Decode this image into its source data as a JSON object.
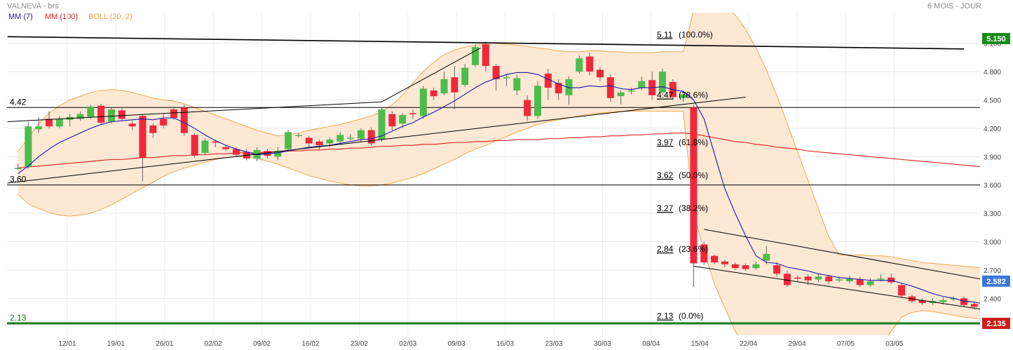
{
  "header": {
    "title": "VALNEVA - brs",
    "period": "6 MOIS - JOUR"
  },
  "legend": [
    {
      "label": "MM (7)",
      "color": "#1a1aa8"
    },
    {
      "label": "MM (100)",
      "color": "#e02020"
    },
    {
      "label": "BOLL (20, 2)",
      "color": "#f0a040"
    }
  ],
  "colors": {
    "up": "#4cbc4c",
    "down": "#f0283c",
    "boll_fill": "#fde8d4",
    "boll_line": "#f0a040",
    "mm7": "#1a1aa8",
    "mm100": "#e02020",
    "support": "#1a7a1a",
    "last_badge": "#3c78d8"
  },
  "chart_data": {
    "type": "candlestick",
    "yaxis_ticks": [
      "5.100",
      "4.800",
      "4.500",
      "4.200",
      "3.900",
      "3.600",
      "3.300",
      "3.000",
      "2.700",
      "2.400"
    ],
    "ylim": [
      2.05,
      5.45
    ],
    "xaxis_ticks": [
      "12/01",
      "19/01",
      "26/01",
      "02/02",
      "09/02",
      "16/02",
      "23/02",
      "02/03",
      "09/03",
      "16/03",
      "23/03",
      "30/03",
      "08/04",
      "15/04",
      "22/04",
      "29/04",
      "07/05",
      "03/05"
    ],
    "candles": [
      [
        3.78,
        3.78,
        3.82,
        3.76
      ],
      [
        3.79,
        4.22,
        4.27,
        3.77
      ],
      [
        4.19,
        4.22,
        4.32,
        4.15
      ],
      [
        4.3,
        4.22,
        4.38,
        4.2
      ],
      [
        4.22,
        4.3,
        4.33,
        4.2
      ],
      [
        4.29,
        4.32,
        4.35,
        4.22
      ],
      [
        4.3,
        4.35,
        4.38,
        4.28
      ],
      [
        4.32,
        4.43,
        4.45,
        4.3
      ],
      [
        4.44,
        4.26,
        4.46,
        4.24
      ],
      [
        4.27,
        4.4,
        4.42,
        4.25
      ],
      [
        4.39,
        4.3,
        4.41,
        4.28
      ],
      [
        4.25,
        4.22,
        4.28,
        4.18
      ],
      [
        4.33,
        3.89,
        4.35,
        3.64
      ],
      [
        4.23,
        4.15,
        4.25,
        4.1
      ],
      [
        4.3,
        4.23,
        4.35,
        4.2
      ],
      [
        4.4,
        4.31,
        4.43,
        4.29
      ],
      [
        4.42,
        4.15,
        4.45,
        4.12
      ],
      [
        4.13,
        3.91,
        4.15,
        3.89
      ],
      [
        3.94,
        4.07,
        4.09,
        3.92
      ],
      [
        4.06,
        4.05,
        4.08,
        4.0
      ],
      [
        4.0,
        3.98,
        4.02,
        3.96
      ],
      [
        3.98,
        3.92,
        4.0,
        3.9
      ],
      [
        3.95,
        3.88,
        3.98,
        3.86
      ],
      [
        3.88,
        3.97,
        4.0,
        3.85
      ],
      [
        3.96,
        3.91,
        3.98,
        3.88
      ],
      [
        3.9,
        3.96,
        4.0,
        3.86
      ],
      [
        3.98,
        4.16,
        4.18,
        3.96
      ],
      [
        4.12,
        4.13,
        4.15,
        4.1
      ],
      [
        4.1,
        4.04,
        4.12,
        4.0
      ],
      [
        4.06,
        4.02,
        4.08,
        3.97
      ],
      [
        4.04,
        4.08,
        4.1,
        4.0
      ],
      [
        4.06,
        4.13,
        4.16,
        4.04
      ],
      [
        4.1,
        4.1,
        4.14,
        4.07
      ],
      [
        4.09,
        4.18,
        4.2,
        4.06
      ],
      [
        4.18,
        4.04,
        4.21,
        4.02
      ],
      [
        4.08,
        4.4,
        4.42,
        4.06
      ],
      [
        4.35,
        4.22,
        4.38,
        4.18
      ],
      [
        4.25,
        4.34,
        4.36,
        4.2
      ],
      [
        4.36,
        4.35,
        4.4,
        4.3
      ],
      [
        4.33,
        4.62,
        4.65,
        4.3
      ],
      [
        4.6,
        4.54,
        4.63,
        4.5
      ],
      [
        4.57,
        4.72,
        4.8,
        4.55
      ],
      [
        4.74,
        4.58,
        4.86,
        4.4
      ],
      [
        4.66,
        4.84,
        4.88,
        4.64
      ],
      [
        4.87,
        5.06,
        5.09,
        4.85
      ],
      [
        5.09,
        4.86,
        5.12,
        4.8
      ],
      [
        4.86,
        4.72,
        4.88,
        4.6
      ],
      [
        4.74,
        4.74,
        4.78,
        4.65
      ],
      [
        4.6,
        4.73,
        4.77,
        4.55
      ],
      [
        4.5,
        4.33,
        4.55,
        4.28
      ],
      [
        4.33,
        4.65,
        4.7,
        4.3
      ],
      [
        4.78,
        4.63,
        4.83,
        4.5
      ],
      [
        4.68,
        4.57,
        4.72,
        4.5
      ],
      [
        4.55,
        4.72,
        4.75,
        4.45
      ],
      [
        4.8,
        4.94,
        4.97,
        4.78
      ],
      [
        4.96,
        4.8,
        5.0,
        4.76
      ],
      [
        4.82,
        4.74,
        4.85,
        4.7
      ],
      [
        4.74,
        4.52,
        4.77,
        4.48
      ],
      [
        4.54,
        4.58,
        4.6,
        4.45
      ],
      [
        4.59,
        4.6,
        4.63,
        4.56
      ],
      [
        4.63,
        4.7,
        4.75,
        4.6
      ],
      [
        4.71,
        4.55,
        4.8,
        4.5
      ],
      [
        4.58,
        4.8,
        4.83,
        4.55
      ],
      [
        4.69,
        4.53,
        4.72,
        4.5
      ],
      [
        4.52,
        4.56,
        4.6,
        4.48
      ],
      [
        4.42,
        2.77,
        4.45,
        2.52
      ],
      [
        2.97,
        2.78,
        3.0,
        2.75
      ],
      [
        2.85,
        2.78,
        2.86,
        2.76
      ],
      [
        2.79,
        2.76,
        2.81,
        2.73
      ],
      [
        2.76,
        2.72,
        2.78,
        2.7
      ],
      [
        2.75,
        2.71,
        2.77,
        2.69
      ],
      [
        2.72,
        2.76,
        2.79,
        2.7
      ],
      [
        2.8,
        2.87,
        2.95,
        2.76
      ],
      [
        2.75,
        2.66,
        2.78,
        2.63
      ],
      [
        2.66,
        2.54,
        2.69,
        2.52
      ],
      [
        2.62,
        2.61,
        2.64,
        2.58
      ],
      [
        2.63,
        2.59,
        2.66,
        2.54
      ],
      [
        2.6,
        2.63,
        2.66,
        2.57
      ],
      [
        2.63,
        2.58,
        2.65,
        2.55
      ],
      [
        2.6,
        2.6,
        2.63,
        2.57
      ],
      [
        2.58,
        2.61,
        2.64,
        2.56
      ],
      [
        2.6,
        2.54,
        2.63,
        2.52
      ],
      [
        2.54,
        2.58,
        2.61,
        2.52
      ],
      [
        2.6,
        2.61,
        2.65,
        2.58
      ],
      [
        2.62,
        2.57,
        2.66,
        2.55
      ],
      [
        2.54,
        2.43,
        2.56,
        2.4
      ],
      [
        2.42,
        2.37,
        2.44,
        2.35
      ],
      [
        2.38,
        2.35,
        2.4,
        2.33
      ],
      [
        2.35,
        2.37,
        2.4,
        2.33
      ],
      [
        2.36,
        2.38,
        2.41,
        2.34
      ],
      [
        2.39,
        2.4,
        2.42,
        2.37
      ],
      [
        2.4,
        2.33,
        2.42,
        2.31
      ],
      [
        2.34,
        2.31,
        2.36,
        2.28
      ],
      [
        2.32,
        2.24,
        2.34,
        2.15
      ],
      [
        2.22,
        2.3,
        2.33,
        2.19
      ],
      [
        2.3,
        2.32,
        2.35,
        2.28
      ],
      [
        2.31,
        2.44,
        2.47,
        2.29
      ],
      [
        2.44,
        2.41,
        2.45,
        2.38
      ],
      [
        2.4,
        2.58,
        2.6,
        2.38
      ]
    ],
    "mm7": [
      3.72,
      3.8,
      3.9,
      3.98,
      4.05,
      4.1,
      4.15,
      4.2,
      4.24,
      4.27,
      4.28,
      4.29,
      4.3,
      4.29,
      4.31,
      4.31,
      4.26,
      4.2,
      4.13,
      4.07,
      4.02,
      3.98,
      3.95,
      3.92,
      3.93,
      3.94,
      3.96,
      3.98,
      4.0,
      4.01,
      4.02,
      4.04,
      4.06,
      4.08,
      4.09,
      4.12,
      4.17,
      4.22,
      4.26,
      4.32,
      4.37,
      4.43,
      4.49,
      4.56,
      4.63,
      4.69,
      4.73,
      4.77,
      4.79,
      4.79,
      4.77,
      4.72,
      4.67,
      4.63,
      4.63,
      4.65,
      4.64,
      4.65,
      4.62,
      4.61,
      4.63,
      4.63,
      4.64,
      4.61,
      4.59,
      4.5,
      4.3,
      3.93,
      3.56,
      3.3,
      3.06,
      2.85,
      2.78,
      2.77,
      2.73,
      2.71,
      2.69,
      2.66,
      2.64,
      2.62,
      2.61,
      2.6,
      2.59,
      2.59,
      2.59,
      2.56,
      2.53,
      2.49,
      2.45,
      2.42,
      2.4,
      2.37,
      2.36,
      2.34,
      2.33,
      2.33,
      2.33,
      2.34,
      2.36
    ],
    "mm100": [
      3.78,
      3.79,
      3.8,
      3.81,
      3.82,
      3.83,
      3.84,
      3.85,
      3.86,
      3.87,
      3.87,
      3.88,
      3.89,
      3.89,
      3.9,
      3.91,
      3.91,
      3.92,
      3.92,
      3.93,
      3.93,
      3.94,
      3.94,
      3.94,
      3.95,
      3.95,
      3.96,
      3.96,
      3.97,
      3.97,
      3.98,
      3.98,
      3.99,
      3.99,
      4.0,
      4.01,
      4.01,
      4.02,
      4.02,
      4.03,
      4.03,
      4.04,
      4.05,
      4.05,
      4.06,
      4.06,
      4.07,
      4.07,
      4.08,
      4.08,
      4.08,
      4.09,
      4.09,
      4.1,
      4.1,
      4.11,
      4.11,
      4.12,
      4.12,
      4.13,
      4.13,
      4.14,
      4.14,
      4.15,
      4.15,
      4.14,
      4.12,
      4.1,
      4.08,
      4.06,
      4.05,
      4.03,
      4.02,
      4.0,
      3.99,
      3.98,
      3.96,
      3.95,
      3.94,
      3.93,
      3.92,
      3.91,
      3.9,
      3.89,
      3.88,
      3.87,
      3.86,
      3.85,
      3.84,
      3.83,
      3.82,
      3.81,
      3.8,
      3.79,
      3.78,
      3.77,
      3.76,
      3.75,
      3.73
    ],
    "boll_upper": [
      3.95,
      4.1,
      4.25,
      4.36,
      4.44,
      4.5,
      4.54,
      4.58,
      4.6,
      4.61,
      4.6,
      4.58,
      4.55,
      4.52,
      4.5,
      4.49,
      4.46,
      4.42,
      4.38,
      4.34,
      4.3,
      4.26,
      4.22,
      4.18,
      4.15,
      4.12,
      4.13,
      4.15,
      4.18,
      4.2,
      4.22,
      4.24,
      4.27,
      4.3,
      4.33,
      4.38,
      4.45,
      4.55,
      4.68,
      4.8,
      4.9,
      4.98,
      5.03,
      5.06,
      5.08,
      5.1,
      5.1,
      5.09,
      5.08,
      5.07,
      5.05,
      5.04,
      5.02,
      5.01,
      5.01,
      5.02,
      5.02,
      5.01,
      5.01,
      5.0,
      5.0,
      5.0,
      5.01,
      5.01,
      5.01,
      5.45,
      5.52,
      5.52,
      5.49,
      5.4,
      5.25,
      5.05,
      4.82,
      4.55,
      4.25,
      3.95,
      3.65,
      3.35,
      3.05,
      2.86,
      2.86,
      2.86,
      2.85,
      2.85,
      2.84,
      2.82,
      2.8,
      2.78,
      2.77,
      2.76,
      2.75,
      2.74,
      2.73,
      2.72,
      2.71,
      2.71,
      2.72,
      2.71,
      2.7
    ],
    "boll_lower": [
      3.5,
      3.4,
      3.35,
      3.31,
      3.28,
      3.27,
      3.28,
      3.3,
      3.34,
      3.39,
      3.45,
      3.51,
      3.57,
      3.63,
      3.69,
      3.74,
      3.78,
      3.81,
      3.84,
      3.87,
      3.89,
      3.9,
      3.9,
      3.88,
      3.85,
      3.82,
      3.78,
      3.74,
      3.7,
      3.67,
      3.64,
      3.62,
      3.6,
      3.59,
      3.59,
      3.6,
      3.62,
      3.65,
      3.68,
      3.72,
      3.77,
      3.82,
      3.87,
      3.93,
      3.98,
      4.02,
      4.07,
      4.11,
      4.16,
      4.2,
      4.24,
      4.27,
      4.29,
      4.31,
      4.33,
      4.35,
      4.36,
      4.37,
      4.38,
      4.38,
      4.38,
      4.38,
      4.38,
      4.38,
      4.38,
      3.3,
      2.9,
      2.55,
      2.3,
      2.05,
      1.9,
      1.85,
      1.85,
      1.85,
      1.85,
      1.85,
      1.85,
      1.85,
      1.85,
      1.85,
      1.85,
      1.85,
      1.85,
      1.9,
      2.05,
      2.2,
      2.25,
      2.27,
      2.26,
      2.24,
      2.22,
      2.2,
      2.19,
      2.18,
      2.17,
      2.17,
      2.17,
      2.17,
      2.18
    ],
    "horizontal_levels": [
      {
        "label": "4.42",
        "value": 4.42
      },
      {
        "label": "3.60",
        "value": 3.6
      },
      {
        "label": "2.13",
        "value": 2.135
      }
    ],
    "fibonacci": [
      {
        "value_label": "5.11",
        "pct": "(100.0%)",
        "value": 5.11
      },
      {
        "value_label": "4.47",
        "pct": "(78.6%)",
        "value": 4.47
      },
      {
        "value_label": "3.97",
        "pct": "(61.8%)",
        "value": 3.97
      },
      {
        "value_label": "3.62",
        "pct": "(50.0%)",
        "value": 3.62
      },
      {
        "value_label": "3.27",
        "pct": "(38.2%)",
        "value": 3.27
      },
      {
        "value_label": "2.84",
        "pct": "(23.6%)",
        "value": 2.84
      },
      {
        "value_label": "2.13",
        "pct": "(0.0%)",
        "value": 2.13
      }
    ],
    "trendlines": [
      {
        "from": [
          -1,
          5.17
        ],
        "to": [
          91,
          5.04
        ],
        "color": "#000000",
        "width": 1.6
      },
      {
        "from": [
          -1,
          4.27
        ],
        "to": [
          35,
          4.48
        ],
        "color": "#000000",
        "width": 1
      },
      {
        "from": [
          35,
          4.48
        ],
        "to": [
          44.5,
          5.05
        ],
        "color": "#000000",
        "width": 1
      },
      {
        "from": [
          44.5,
          5.05
        ],
        "to": [
          32,
          5.02
        ],
        "color": "#000000",
        "width": 0
      },
      {
        "from": [
          44,
          5.06
        ],
        "to": [
          67,
          4.99
        ],
        "color": "#000000",
        "width": 0
      },
      {
        "from": [
          -1,
          3.62
        ],
        "to": [
          70,
          4.53
        ],
        "color": "#000000",
        "width": 1
      },
      {
        "from": [
          -1,
          4.27
        ],
        "to": [
          34,
          4.98
        ],
        "color": "#000000",
        "width": 0
      },
      {
        "from": [
          66,
          3.13
        ],
        "to": [
          104,
          2.38
        ],
        "color": "#000000",
        "width": 1
      },
      {
        "from": [
          65,
          2.74
        ],
        "to": [
          99,
          2.18
        ],
        "color": "#000000",
        "width": 1
      },
      {
        "from": [
          95.5,
          2.16
        ],
        "to": [
          104.5,
          2.57
        ],
        "color": "#000000",
        "width": 1.2,
        "arrow": true
      }
    ],
    "badges": [
      {
        "label": "5.150",
        "value": 5.15,
        "color": "#1a8a1a"
      },
      {
        "label": "2.582",
        "value": 2.582,
        "color": "#3c78d8"
      },
      {
        "label": "2.135",
        "value": 2.135,
        "color": "#d01c1c"
      }
    ]
  }
}
